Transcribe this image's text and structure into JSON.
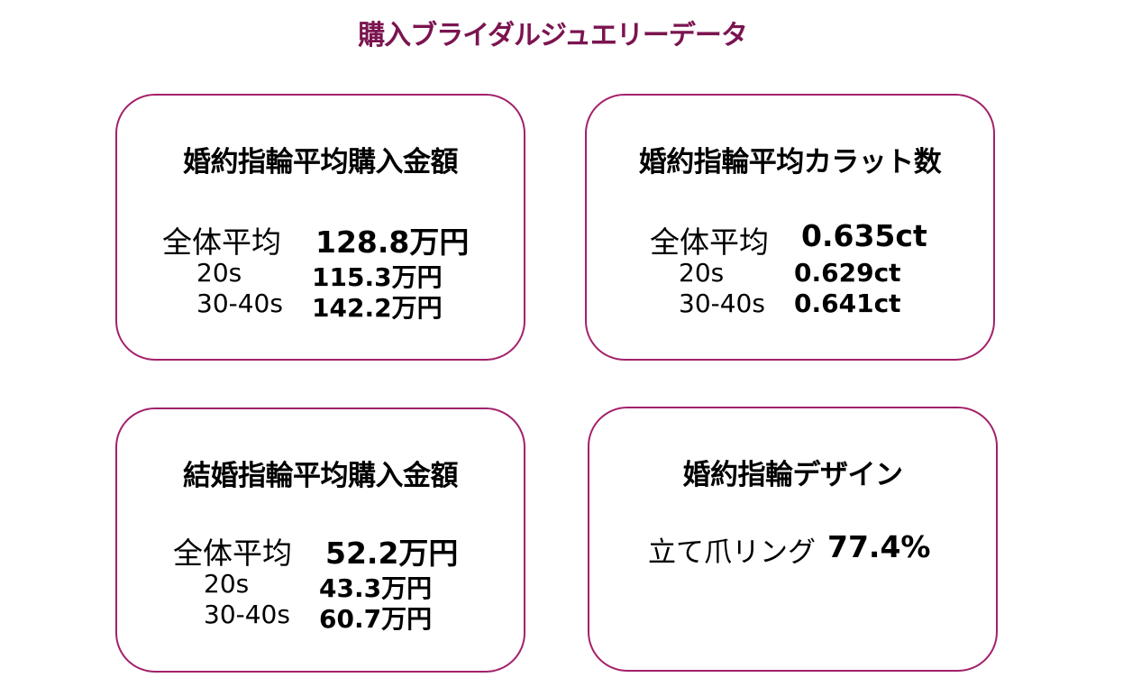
{
  "title": "購入ブライダルジュエリーデータ",
  "cards": [
    {
      "title": "婚約指輪平均購入金額",
      "overall_label": "全体平均",
      "overall_value": "128.8万円",
      "rows": [
        {
          "label": "20s",
          "value": "115.3万円"
        },
        {
          "label": "30-40s",
          "value": "142.2万円"
        }
      ]
    },
    {
      "title": "婚約指輪平均カラット数",
      "overall_label": "全体平均",
      "overall_value": "0.635ct",
      "rows": [
        {
          "label": "20s",
          "value": "0.629ct"
        },
        {
          "label": "30-40s",
          "value": "0.641ct"
        }
      ]
    },
    {
      "title": "結婚指輪平均購入金額",
      "overall_label": "全体平均",
      "overall_value": "52.2万円",
      "rows": [
        {
          "label": "20s",
          "value": "43.3万円"
        },
        {
          "label": "30-40s",
          "value": "60.7万円"
        }
      ]
    },
    {
      "title": "婚約指輪デザイン",
      "overall_label": "立て爪リング",
      "overall_value": "77.4%"
    }
  ],
  "colors": {
    "title": "#7b1450",
    "border": "#a3206a"
  }
}
